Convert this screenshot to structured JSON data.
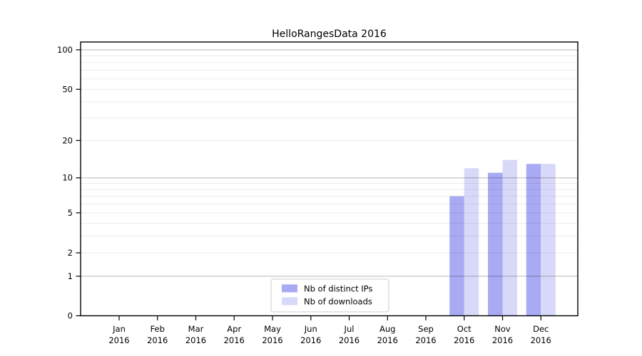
{
  "figure": {
    "background": "#ffffff",
    "frame_color": "#000000",
    "text_color": "#000000"
  },
  "chart_data": {
    "type": "bar",
    "title": "HelloRangesData 2016",
    "categories": [
      "Jan 2016",
      "Feb 2016",
      "Mar 2016",
      "Apr 2016",
      "May 2016",
      "Jun 2016",
      "Jul 2016",
      "Aug 2016",
      "Sep 2016",
      "Oct 2016",
      "Nov 2016",
      "Dec 2016"
    ],
    "series": [
      {
        "name": "Nb of distinct IPs",
        "color": "#a9a9f4",
        "values": [
          0,
          0,
          0,
          0,
          0,
          0,
          0,
          0,
          0,
          7,
          11,
          13
        ]
      },
      {
        "name": "Nb of downloads",
        "color": "#d8d8f9",
        "values": [
          0,
          0,
          0,
          0,
          0,
          0,
          0,
          0,
          0,
          12,
          14,
          13
        ]
      }
    ],
    "xlabel": "",
    "ylabel": "",
    "y_ticks": [
      0,
      1,
      2,
      5,
      10,
      20,
      50,
      100
    ],
    "y_scale": "log10(1+y)",
    "ylim": [
      0,
      115
    ],
    "grid": {
      "major_values": [
        1,
        10,
        100
      ],
      "minor_values": [
        2,
        3,
        4,
        5,
        6,
        7,
        8,
        9,
        20,
        30,
        40,
        50,
        60,
        70,
        80,
        90
      ],
      "major_color": "#c5c5c5",
      "minor_color": "#ececec"
    },
    "legend_position": "lower center"
  }
}
